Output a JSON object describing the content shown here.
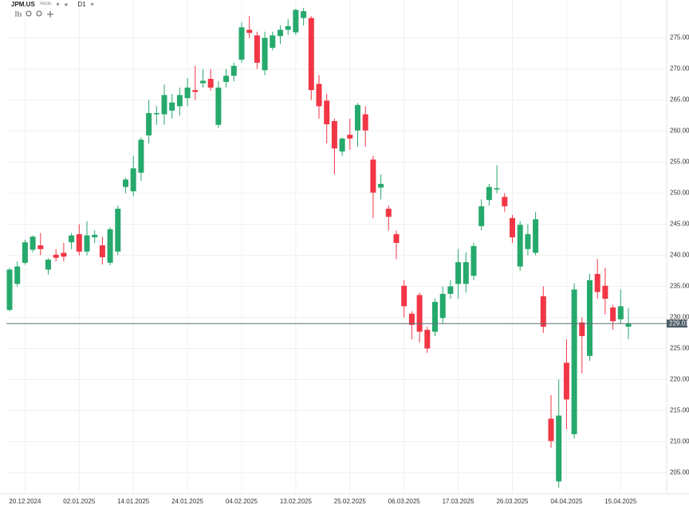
{
  "toolbar": {
    "symbol": "JPM.US",
    "asset_class": "Akcie",
    "timeframe": "D1"
  },
  "chart_data": {
    "type": "candlestick",
    "categories": [
      null,
      null,
      "20.12.2024",
      null,
      null,
      null,
      null,
      null,
      null,
      "02.01.2025",
      null,
      null,
      null,
      null,
      null,
      null,
      "14.01.2025",
      null,
      null,
      null,
      null,
      null,
      null,
      "24.01.2025",
      null,
      null,
      null,
      null,
      null,
      null,
      "04.02.2025",
      null,
      null,
      null,
      null,
      null,
      null,
      "13.02.2025",
      null,
      null,
      null,
      null,
      null,
      null,
      "25.02.2025",
      null,
      null,
      null,
      null,
      null,
      null,
      "06.03.2025",
      null,
      null,
      null,
      null,
      null,
      null,
      "17.03.2025",
      null,
      null,
      null,
      null,
      null,
      null,
      "26.03.2025",
      null,
      null,
      null,
      null,
      null,
      null,
      "04.04.2025",
      null,
      null,
      null,
      null,
      null,
      null,
      "15.04.2025",
      null
    ],
    "open": [
      231.2,
      235.4,
      238.8,
      240.9,
      241.6,
      237.7,
      240.1,
      240.4,
      242.1,
      243.4,
      240.6,
      242.9,
      241.6,
      238.8,
      240.6,
      251,
      250.3,
      253.3,
      259.3,
      262.7,
      262.7,
      263.3,
      264,
      265.3,
      266.6,
      267.7,
      268.4,
      261,
      267.9,
      268.9,
      271.5,
      276.3,
      275.4,
      269.8,
      273.4,
      275.3,
      276.3,
      275.9,
      278.2,
      278.2,
      267.6,
      264.9,
      261.6,
      256.7,
      259.4,
      260.1,
      262.7,
      255.4,
      250.9,
      247.5,
      243.4,
      235.1,
      230.6,
      233.6,
      228,
      227.7,
      229.9,
      233.8,
      235.4,
      235.4,
      236.7,
      244.7,
      248.9,
      250.6,
      249.4,
      246,
      238.2,
      241,
      240.4,
      233.4,
      213.7,
      203.6,
      222.7,
      211.2,
      229.2,
      223.8,
      237,
      235.1,
      231.6,
      229.7,
      228.5
    ],
    "high": [
      238,
      239,
      242.5,
      243.2,
      243.6,
      239.5,
      241,
      242,
      243.6,
      245,
      245.5,
      244,
      243,
      244.5,
      248,
      252.5,
      256,
      259,
      265,
      264,
      267.5,
      266,
      267,
      268.5,
      270.5,
      270,
      270,
      268,
      270,
      271,
      277.5,
      278.5,
      276,
      276,
      276,
      277,
      278,
      279.7,
      279.8,
      278.5,
      269,
      266,
      262,
      259,
      262,
      264.5,
      264,
      256,
      253,
      248,
      244,
      236,
      231,
      234,
      228.5,
      233,
      235,
      236,
      241,
      240.5,
      242,
      249,
      251.5,
      254.5,
      250,
      246.5,
      245.5,
      245,
      247,
      235,
      217.5,
      220,
      226.5,
      235.5,
      230,
      237,
      239.4,
      238,
      232,
      234.5,
      231.5
    ],
    "low": [
      231,
      235,
      238.5,
      240.5,
      240,
      236.9,
      239,
      239,
      241,
      240,
      240,
      242,
      238.5,
      238.4,
      240,
      250,
      249.5,
      252,
      258,
      261,
      261,
      262,
      262.5,
      264,
      265,
      267,
      266.5,
      260.5,
      267,
      268,
      271,
      275,
      270,
      269,
      273,
      274,
      275.5,
      275.5,
      277,
      265,
      262,
      258,
      253,
      256,
      257,
      257.5,
      257.5,
      246,
      249,
      244,
      239.4,
      230,
      226.5,
      226,
      224.3,
      227,
      229,
      233,
      233,
      234,
      236,
      244,
      248,
      250,
      247,
      242,
      237.5,
      240,
      240,
      227.5,
      209,
      202.6,
      212,
      210.5,
      221,
      223,
      233,
      230.5,
      228,
      229,
      226.5
    ],
    "close": [
      237.7,
      238.2,
      242.1,
      243,
      241,
      239.3,
      239.6,
      239.8,
      243.2,
      240.6,
      243.2,
      243.3,
      239.7,
      244.2,
      247.5,
      252.2,
      254,
      258.6,
      262.9,
      262.9,
      265.8,
      264.6,
      265.8,
      267,
      266.3,
      268.1,
      267,
      267,
      268.9,
      270.5,
      276.7,
      275.8,
      271,
      275,
      275.4,
      276.3,
      276.9,
      279.5,
      279.3,
      266.6,
      264,
      261.1,
      257.2,
      258.8,
      258.8,
      264.2,
      260.1,
      250.1,
      251.5,
      246.2,
      242,
      231.8,
      228.8,
      227.7,
      225,
      232.5,
      233.8,
      235,
      238.9,
      238.9,
      241.5,
      247.9,
      251,
      250.8,
      247.9,
      242.9,
      244.9,
      243.4,
      245.8,
      228.5,
      210.1,
      214.2,
      216.8,
      234.5,
      227,
      236,
      234.1,
      233,
      229.4,
      231.8,
      229.01
    ],
    "up_color": "#26a96c",
    "down_color": "#f23645",
    "ylim": [
      201.6,
      281.1
    ],
    "yticks": [
      {
        "value": 205,
        "label": "205.00"
      },
      {
        "value": 210,
        "label": "210.00"
      },
      {
        "value": 215,
        "label": "215.00"
      },
      {
        "value": 220,
        "label": "220.00"
      },
      {
        "value": 225,
        "label": "225.00"
      },
      {
        "value": 230,
        "label": "230.00"
      },
      {
        "value": 235,
        "label": "235.00"
      },
      {
        "value": 240,
        "label": "240.00"
      },
      {
        "value": 245,
        "label": "245.00"
      },
      {
        "value": 250,
        "label": "250.00"
      },
      {
        "value": 255,
        "label": "255.00"
      },
      {
        "value": 260,
        "label": "260.00"
      },
      {
        "value": 265,
        "label": "265.00"
      },
      {
        "value": 270,
        "label": "270.00"
      },
      {
        "value": 275,
        "label": "275.00"
      }
    ],
    "last_price": 229.01,
    "grid": true
  }
}
